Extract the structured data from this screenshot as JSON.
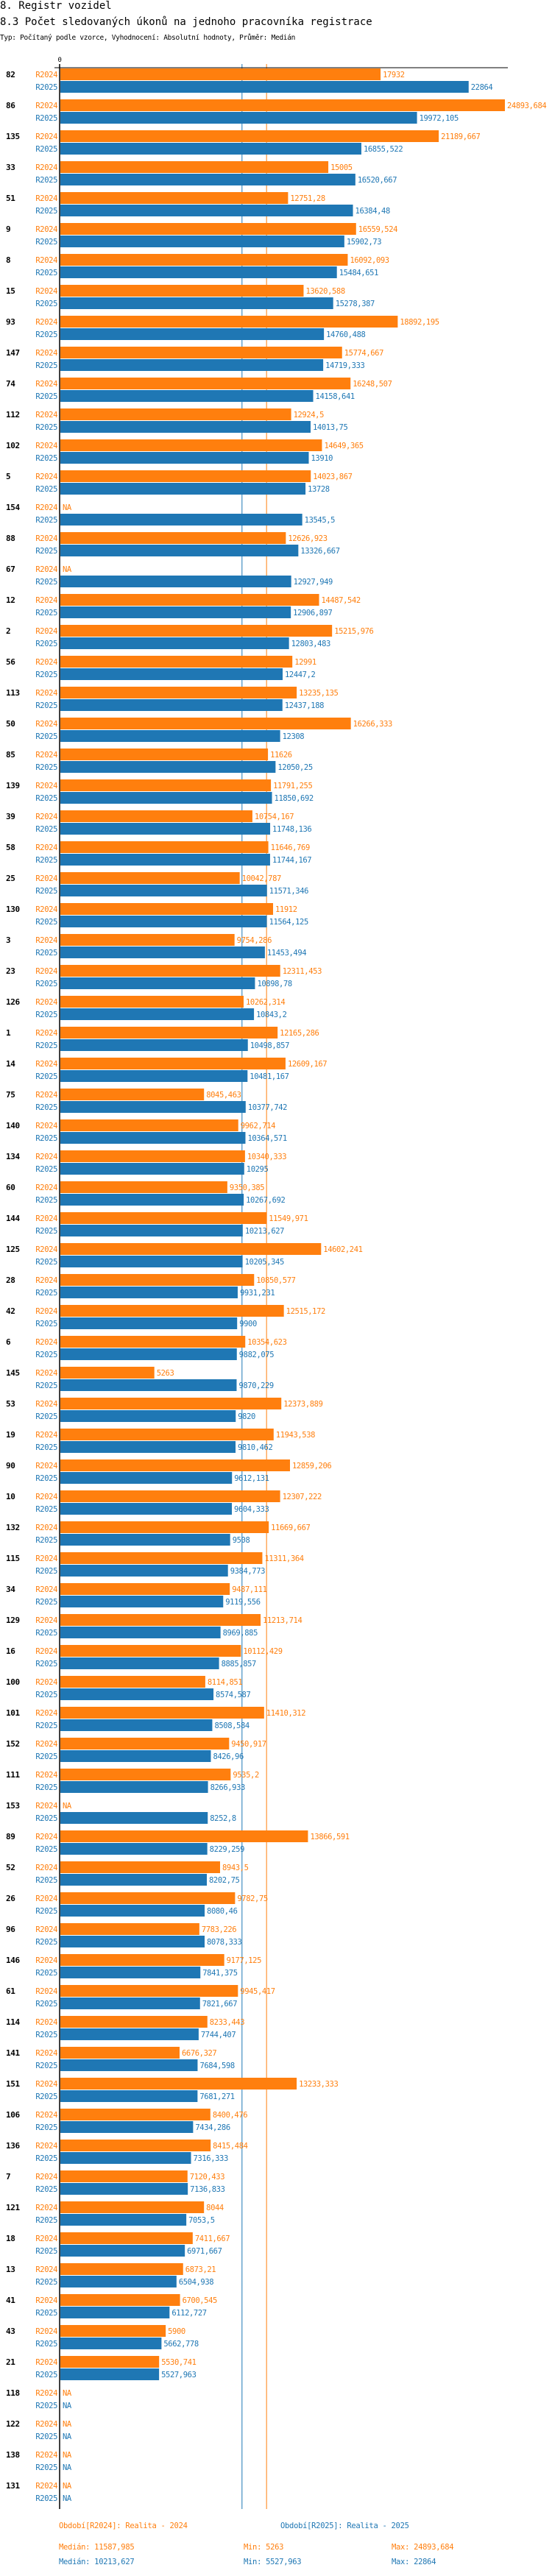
{
  "header": {
    "section_title": "8. Registr vozidel",
    "chart_title": "8.3 Počet sledovaných úkonů na jednoho pracovníka registrace",
    "subtitle": "Typ: Počítaný podle vzorce, Vyhodnocení: Absolutní hodnoty, Průměr: Medián"
  },
  "colors": {
    "R2024": "#ff7f0e",
    "R2025": "#1f77b4",
    "axis": "#000000"
  },
  "legend": {
    "R2024": "Období[R2024]: Realita - 2024",
    "R2025": "Období[R2025]: Realita - 2025"
  },
  "stats": {
    "R2024": {
      "median": "Medián: 11587,985",
      "min": "Min: 5263",
      "max": "Max: 24893,684"
    },
    "R2025": {
      "median": "Medián: 10213,627",
      "min": "Min: 5527,963",
      "max": "Max: 22864"
    }
  },
  "chart_data": {
    "type": "bar",
    "orientation": "horizontal",
    "title": "8.3 Počet sledovaných úkonů na jednoho pracovníka registrace",
    "xlabel": "",
    "ylabel": "",
    "x_tick_labels": [
      "0"
    ],
    "xlim": [
      0,
      24893.684
    ],
    "grid": false,
    "legend_position": "bottom",
    "na_label": "NA",
    "medians": {
      "R2024": 11587.985,
      "R2025": 10213.627
    },
    "categories": [
      "82",
      "86",
      "135",
      "33",
      "51",
      "9",
      "8",
      "15",
      "93",
      "147",
      "74",
      "112",
      "102",
      "5",
      "154",
      "88",
      "67",
      "12",
      "2",
      "56",
      "113",
      "50",
      "85",
      "139",
      "39",
      "58",
      "25",
      "130",
      "3",
      "23",
      "126",
      "1",
      "14",
      "75",
      "140",
      "134",
      "60",
      "144",
      "125",
      "28",
      "42",
      "6",
      "145",
      "53",
      "19",
      "90",
      "10",
      "132",
      "115",
      "34",
      "129",
      "16",
      "100",
      "101",
      "152",
      "111",
      "153",
      "89",
      "52",
      "26",
      "96",
      "146",
      "61",
      "114",
      "141",
      "151",
      "106",
      "136",
      "7",
      "121",
      "18",
      "13",
      "41",
      "43",
      "21",
      "118",
      "122",
      "138",
      "131"
    ],
    "series": [
      {
        "name": "R2024",
        "values": [
          17932,
          24893.684,
          21189.667,
          15005,
          12751.28,
          16559.524,
          16092.093,
          13620.588,
          18892.195,
          15774.667,
          16248.507,
          12924.5,
          14649.365,
          14023.867,
          null,
          12626.923,
          null,
          14487.542,
          15215.976,
          12991,
          13235.135,
          16266.333,
          11626,
          11791.255,
          10754.167,
          11646.769,
          10042.787,
          11912,
          9754.286,
          12311.453,
          10262.314,
          12165.286,
          12609.167,
          8045.463,
          9962.714,
          10340.333,
          9350.385,
          11549.971,
          14602.241,
          10850.577,
          12515.172,
          10354.623,
          5263,
          12373.889,
          11943.538,
          12859.206,
          12307.222,
          11669.667,
          11311.364,
          9487.111,
          11213.714,
          10112.429,
          8114.851,
          11410.312,
          9450.917,
          9535.2,
          null,
          13866.591,
          8943.5,
          9782.75,
          7783.226,
          9177.125,
          9945.417,
          8233.443,
          6676.327,
          13233.333,
          8400.476,
          8415.484,
          7120.433,
          8044,
          7411.667,
          6873.21,
          6700.545,
          5900,
          5530.741,
          null,
          null,
          null,
          null
        ],
        "labels": [
          "17932",
          "24893,684",
          "21189,667",
          "15005",
          "12751,28",
          "16559,524",
          "16092,093",
          "13620,588",
          "18892,195",
          "15774,667",
          "16248,507",
          "12924,5",
          "14649,365",
          "14023,867",
          "NA",
          "12626,923",
          "NA",
          "14487,542",
          "15215,976",
          "12991",
          "13235,135",
          "16266,333",
          "11626",
          "11791,255",
          "10754,167",
          "11646,769",
          "10042,787",
          "11912",
          "9754,286",
          "12311,453",
          "10262,314",
          "12165,286",
          "12609,167",
          "8045,463",
          "9962,714",
          "10340,333",
          "9350,385",
          "11549,971",
          "14602,241",
          "10850,577",
          "12515,172",
          "10354,623",
          "5263",
          "12373,889",
          "11943,538",
          "12859,206",
          "12307,222",
          "11669,667",
          "11311,364",
          "9487,111",
          "11213,714",
          "10112,429",
          "8114,851",
          "11410,312",
          "9450,917",
          "9535,2",
          "NA",
          "13866,591",
          "8943,5",
          "9782,75",
          "7783,226",
          "9177,125",
          "9945,417",
          "8233,443",
          "6676,327",
          "13233,333",
          "8400,476",
          "8415,484",
          "7120,433",
          "8044",
          "7411,667",
          "6873,21",
          "6700,545",
          "5900",
          "5530,741",
          "NA",
          "NA",
          "NA",
          "NA"
        ]
      },
      {
        "name": "R2025",
        "values": [
          22864,
          19972.105,
          16855.522,
          16520.667,
          16384.48,
          15902.73,
          15484.651,
          15278.387,
          14760.488,
          14719.333,
          14158.641,
          14013.75,
          13910,
          13728,
          13545.5,
          13326.667,
          12927.949,
          12906.897,
          12803.483,
          12447.2,
          12437.188,
          12308,
          12050.25,
          11850.692,
          11748.136,
          11744.167,
          11571.346,
          11564.125,
          11453.494,
          10898.78,
          10843.2,
          10498.857,
          10481.167,
          10377.742,
          10364.571,
          10295,
          10267.692,
          10213.627,
          10205.345,
          9931.231,
          9900,
          9882.075,
          9870.229,
          9820,
          9810.462,
          9612.131,
          9604.333,
          9508,
          9384.773,
          9119.556,
          8969.885,
          8885.857,
          8574.587,
          8508.584,
          8426.96,
          8266.933,
          8252.8,
          8229.259,
          8202.75,
          8080.46,
          8078.333,
          7841.375,
          7821.667,
          7744.407,
          7684.598,
          7681.271,
          7434.286,
          7316.333,
          7136.833,
          7053.5,
          6971.667,
          6504.938,
          6112.727,
          5662.778,
          5527.963,
          null,
          null,
          null,
          null
        ],
        "labels": [
          "22864",
          "19972,105",
          "16855,522",
          "16520,667",
          "16384,48",
          "15902,73",
          "15484,651",
          "15278,387",
          "14760,488",
          "14719,333",
          "14158,641",
          "14013,75",
          "13910",
          "13728",
          "13545,5",
          "13326,667",
          "12927,949",
          "12906,897",
          "12803,483",
          "12447,2",
          "12437,188",
          "12308",
          "12050,25",
          "11850,692",
          "11748,136",
          "11744,167",
          "11571,346",
          "11564,125",
          "11453,494",
          "10898,78",
          "10843,2",
          "10498,857",
          "10481,167",
          "10377,742",
          "10364,571",
          "10295",
          "10267,692",
          "10213,627",
          "10205,345",
          "9931,231",
          "9900",
          "9882,075",
          "9870,229",
          "9820",
          "9810,462",
          "9612,131",
          "9604,333",
          "9508",
          "9384,773",
          "9119,556",
          "8969,885",
          "8885,857",
          "8574,587",
          "8508,584",
          "8426,96",
          "8266,933",
          "8252,8",
          "8229,259",
          "8202,75",
          "8080,46",
          "8078,333",
          "7841,375",
          "7821,667",
          "7744,407",
          "7684,598",
          "7681,271",
          "7434,286",
          "7316,333",
          "7136,833",
          "7053,5",
          "6971,667",
          "6504,938",
          "6112,727",
          "5662,778",
          "5527,963",
          "NA",
          "NA",
          "NA",
          "NA"
        ]
      }
    ]
  }
}
